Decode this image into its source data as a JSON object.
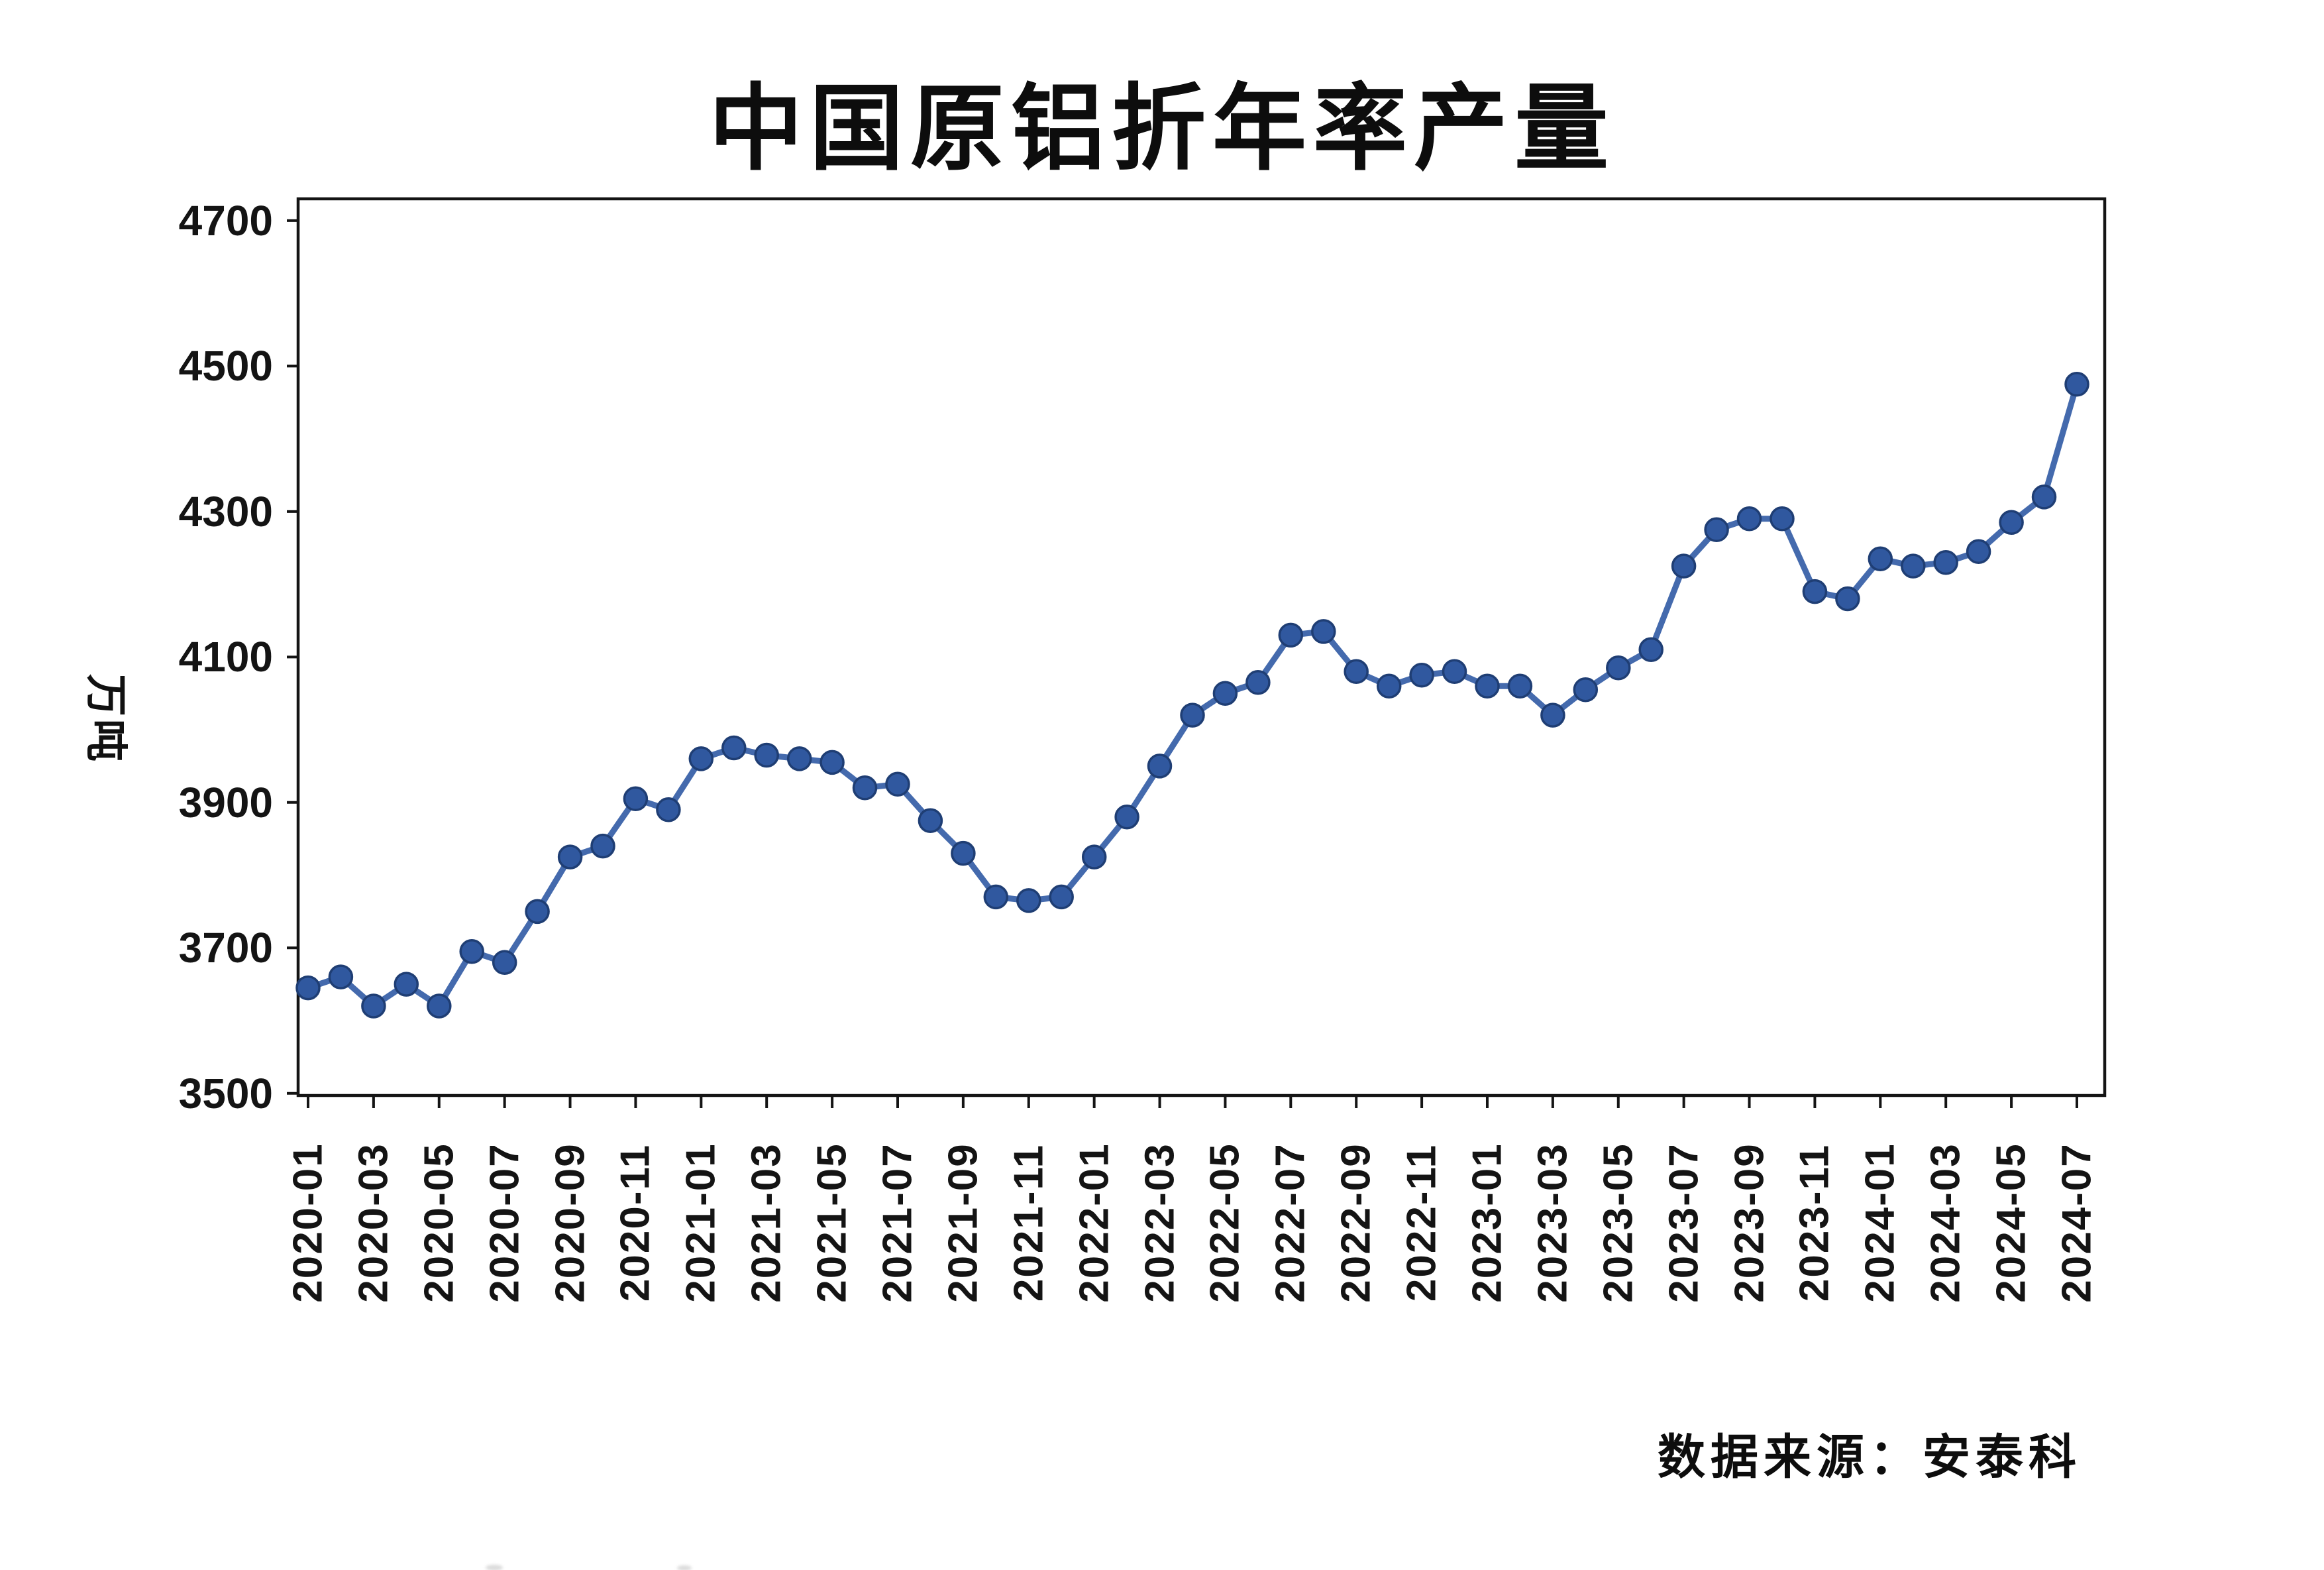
{
  "title": "中国原铝折年率产量",
  "y_axis": {
    "unit_label": "万吨"
  },
  "source_note": "数据来源：安泰科",
  "chart_data": {
    "type": "line",
    "title": "中国原铝折年率产量",
    "xlabel": "",
    "ylabel": "万吨",
    "ylim": [
      3500,
      4700
    ],
    "y_ticks": [
      3500,
      3700,
      3900,
      4100,
      4300,
      4500,
      4700
    ],
    "grid": false,
    "legend_position": "none",
    "x_tick_labels": [
      "2020-01",
      "2020-03",
      "2020-05",
      "2020-07",
      "2020-09",
      "2020-11",
      "2021-01",
      "2021-03",
      "2021-05",
      "2021-07",
      "2021-09",
      "2021-11",
      "2022-01",
      "2022-03",
      "2022-05",
      "2022-07",
      "2022-09",
      "2022-11",
      "2023-01",
      "2023-03",
      "2023-05",
      "2023-07",
      "2023-09",
      "2023-11",
      "2024-01",
      "2024-03",
      "2024-05",
      "2024-07"
    ],
    "series": [
      {
        "name": "中国原铝折年率产量",
        "x": [
          "2020-01",
          "2020-02",
          "2020-03",
          "2020-04",
          "2020-05",
          "2020-06",
          "2020-07",
          "2020-08",
          "2020-09",
          "2020-10",
          "2020-11",
          "2020-12",
          "2021-01",
          "2021-02",
          "2021-03",
          "2021-04",
          "2021-05",
          "2021-06",
          "2021-07",
          "2021-08",
          "2021-09",
          "2021-10",
          "2021-11",
          "2021-12",
          "2022-01",
          "2022-02",
          "2022-03",
          "2022-04",
          "2022-05",
          "2022-06",
          "2022-07",
          "2022-08",
          "2022-09",
          "2022-10",
          "2022-11",
          "2022-12",
          "2023-01",
          "2023-02",
          "2023-03",
          "2023-04",
          "2023-05",
          "2023-06",
          "2023-07",
          "2023-08",
          "2023-09",
          "2023-10",
          "2023-11",
          "2023-12",
          "2024-01",
          "2024-02",
          "2024-03",
          "2024-04",
          "2024-05",
          "2024-06",
          "2024-07"
        ],
        "values": [
          3645,
          3660,
          3620,
          3650,
          3620,
          3695,
          3680,
          3750,
          3825,
          3840,
          3905,
          3890,
          3960,
          3975,
          3965,
          3960,
          3955,
          3920,
          3925,
          3875,
          3830,
          3770,
          3765,
          3770,
          3825,
          3880,
          3950,
          4020,
          4050,
          4065,
          4130,
          4135,
          4080,
          4060,
          4075,
          4080,
          4060,
          4060,
          4020,
          4055,
          4085,
          4110,
          4225,
          4275,
          4290,
          4290,
          4190,
          4180,
          4235,
          4225,
          4230,
          4245,
          4285,
          4320,
          4475
        ]
      }
    ],
    "colors": {
      "line": "#3a62a9",
      "marker_fill": "#30589f",
      "marker_edge": "#1f3e74",
      "axis": "#141414"
    }
  }
}
